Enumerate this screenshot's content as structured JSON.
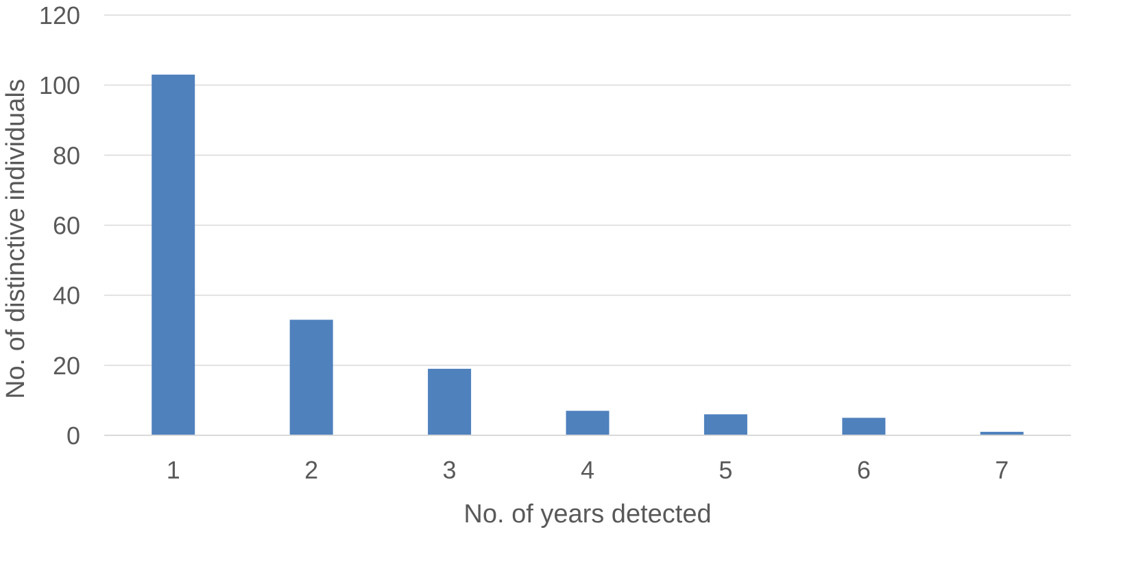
{
  "chart_data": {
    "type": "bar",
    "categories": [
      "1",
      "2",
      "3",
      "4",
      "5",
      "6",
      "7"
    ],
    "values": [
      103,
      33,
      19,
      7,
      6,
      5,
      1
    ],
    "title": "",
    "xlabel": "No. of years detected",
    "ylabel": "No. of distinctive individuals",
    "ylim": [
      0,
      120
    ],
    "yticks": [
      0,
      20,
      40,
      60,
      80,
      100,
      120
    ],
    "grid": true,
    "legend": "none",
    "bar_color": "#4f81bd",
    "gridline_color": "#d9d9d9",
    "text_color": "#595959"
  }
}
